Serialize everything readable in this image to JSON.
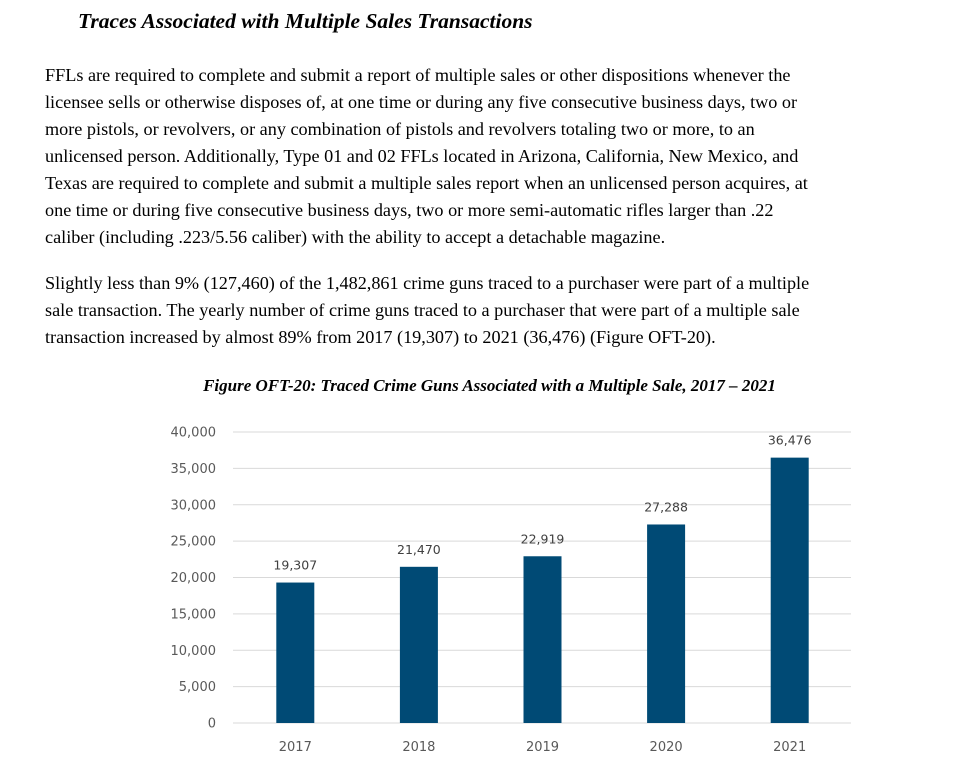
{
  "heading": "Traces Associated with Multiple Sales Transactions",
  "paragraph1": [
    "FFLs are required to complete and submit a report of multiple sales or other dispositions whenever the",
    "licensee sells or otherwise disposes of, at one time or during any five consecutive business days, two or",
    "more pistols, or revolvers, or any combination of pistols and revolvers totaling two or more, to an",
    "unlicensed person. Additionally, Type 01 and 02 FFLs located in Arizona, California, New Mexico, and",
    "Texas are required to complete and submit a multiple sales report when an unlicensed person acquires, at",
    "one time or during five consecutive business days, two or more semi-automatic rifles larger than .22",
    "caliber (including .223/5.56 caliber) with the ability to accept a detachable magazine."
  ],
  "paragraph2": [
    "Slightly less than 9% (127,460) of the 1,482,861 crime guns traced to a purchaser were part of a multiple",
    "sale transaction.  The yearly number of crime guns traced to a purchaser that were part of a multiple sale",
    "transaction increased by almost 89% from 2017 (19,307) to 2021 (36,476) (Figure OFT-20)."
  ],
  "chart_data": {
    "type": "bar",
    "title": "Figure OFT-20: Traced Crime Guns Associated with a Multiple Sale, 2017 – 2021",
    "categories": [
      "2017",
      "2018",
      "2019",
      "2020",
      "2021"
    ],
    "values": [
      19307,
      21470,
      22919,
      27288,
      36476
    ],
    "value_labels": [
      "19,307",
      "21,470",
      "22,919",
      "27,288",
      "36,476"
    ],
    "y_ticks": [
      0,
      5000,
      10000,
      15000,
      20000,
      25000,
      30000,
      35000,
      40000
    ],
    "y_tick_labels": [
      "0",
      "5,000",
      "10,000",
      "15,000",
      "20,000",
      "25,000",
      "30,000",
      "35,000",
      "40,000"
    ],
    "ylim": [
      0,
      40000
    ],
    "xlabel": "",
    "ylabel": "",
    "grid": true,
    "legend": "none",
    "bar_color": "#004a75",
    "grid_color": "#d9d9d9"
  }
}
